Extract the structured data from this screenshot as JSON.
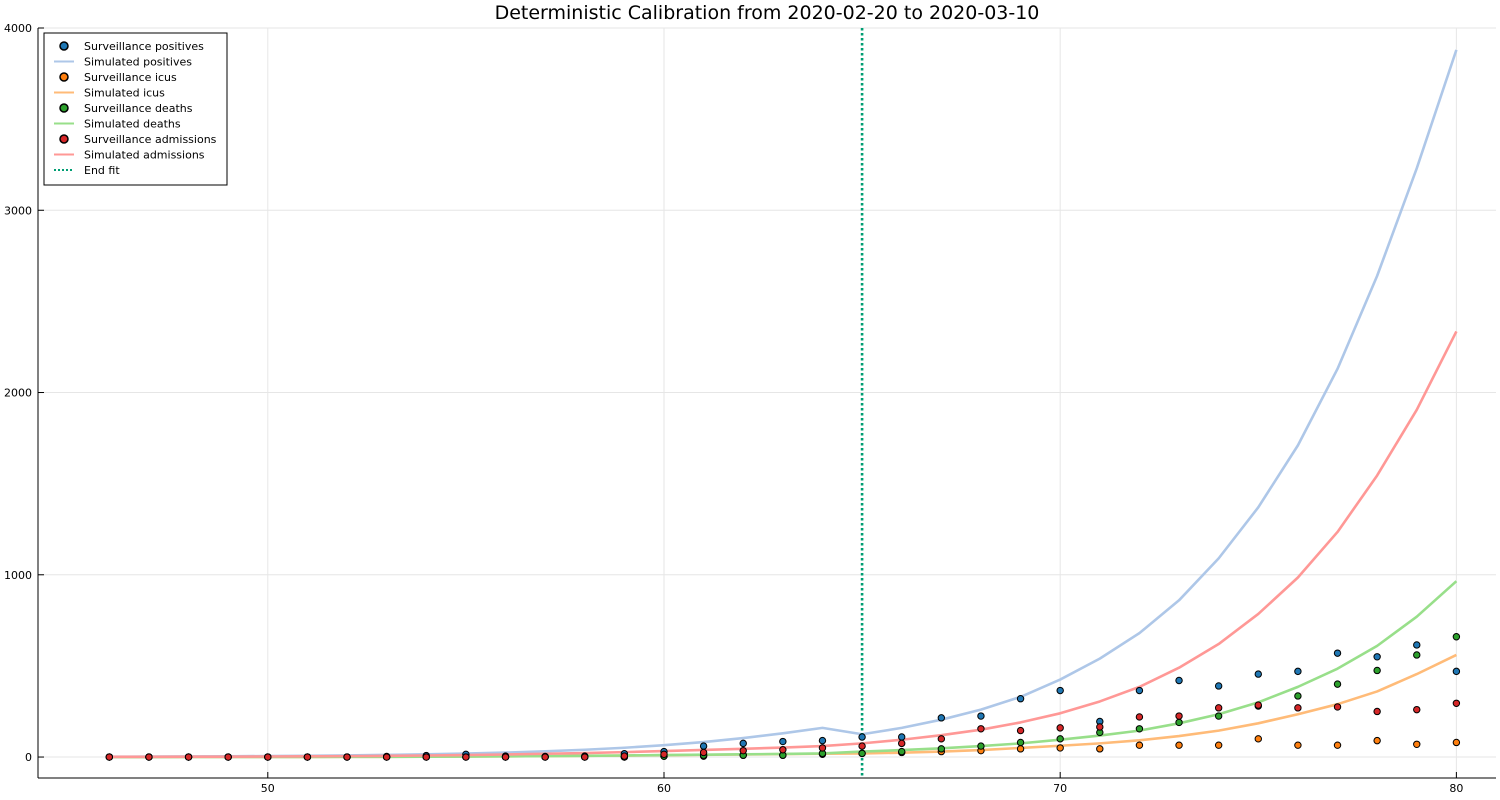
{
  "chart_data": {
    "type": "line",
    "title": "Deterministic Calibration from 2020-02-20 to 2020-03-10",
    "xlabel": "",
    "ylabel": "",
    "xlim": [
      44.2,
      81.0
    ],
    "ylim": [
      -115,
      4000
    ],
    "x_ticks": [
      50,
      60,
      70,
      80
    ],
    "y_ticks": [
      0,
      1000,
      2000,
      3000,
      4000
    ],
    "grid": true,
    "legend_position": "top-left",
    "end_fit_x": 65,
    "x": [
      46,
      47,
      48,
      49,
      50,
      51,
      52,
      53,
      54,
      55,
      56,
      57,
      58,
      59,
      60,
      61,
      62,
      63,
      64,
      65,
      66,
      67,
      68,
      69,
      70,
      71,
      72,
      73,
      74,
      75,
      76,
      77,
      78,
      79,
      80
    ],
    "colors": {
      "positives_marker": "#1f77b4",
      "positives_line": "#aec7e8",
      "icus_marker": "#ff7f0e",
      "icus_line": "#ffbb78",
      "deaths_marker": "#2ca02c",
      "deaths_line": "#98df8a",
      "admissions_marker": "#d62728",
      "admissions_line": "#ff9896",
      "endfit": "#009e73"
    },
    "series": [
      {
        "name": "Surveillance positives",
        "kind": "scatter",
        "color": "#1f77b4",
        "values": [
          0,
          0,
          0,
          0,
          0,
          0,
          0,
          3,
          8,
          15,
          5,
          3,
          5,
          18,
          30,
          60,
          75,
          85,
          90,
          110,
          110,
          215,
          225,
          320,
          365,
          195,
          365,
          420,
          390,
          455,
          470,
          570,
          550,
          615,
          470
        ]
      },
      {
        "name": "Simulated positives",
        "kind": "line",
        "color": "#aec7e8",
        "values": [
          2,
          2.6,
          3.3,
          4.3,
          5.5,
          7.1,
          9.1,
          11.7,
          15,
          19,
          24.5,
          31.5,
          40,
          51,
          65,
          82,
          104,
          130,
          160,
          125,
          160,
          205,
          260,
          330,
          425,
          540,
          680,
          860,
          1090,
          1370,
          1710,
          2130,
          2640,
          3230,
          3880
        ]
      },
      {
        "name": "Surveillance icus",
        "kind": "scatter",
        "color": "#ff7f0e",
        "values": [
          0,
          0,
          0,
          0,
          0,
          0,
          0,
          0,
          0,
          0,
          0,
          0,
          0,
          0,
          5,
          5,
          10,
          10,
          15,
          20,
          25,
          30,
          35,
          45,
          50,
          45,
          65,
          65,
          65,
          100,
          65,
          65,
          90,
          70,
          80
        ]
      },
      {
        "name": "Simulated icus",
        "kind": "line",
        "color": "#ffbb78",
        "values": [
          0,
          0.1,
          0.2,
          0.3,
          0.5,
          0.7,
          1,
          1.4,
          2,
          3,
          4,
          5,
          6.5,
          8,
          10,
          12,
          14,
          16,
          18,
          20,
          24,
          30,
          38,
          50,
          62,
          75,
          92,
          115,
          145,
          185,
          235,
          290,
          360,
          455,
          560
        ]
      },
      {
        "name": "Surveillance deaths",
        "kind": "scatter",
        "color": "#2ca02c",
        "values": [
          0,
          0,
          0,
          0,
          0,
          0,
          0,
          0,
          0,
          0,
          0,
          0,
          0,
          0,
          5,
          10,
          10,
          10,
          20,
          20,
          30,
          45,
          60,
          80,
          100,
          135,
          155,
          190,
          225,
          280,
          335,
          400,
          475,
          560,
          660
        ]
      },
      {
        "name": "Simulated deaths",
        "kind": "line",
        "color": "#98df8a",
        "values": [
          0,
          0.1,
          0.2,
          0.3,
          0.5,
          0.7,
          1,
          1.4,
          2,
          2.8,
          3.8,
          5,
          6.5,
          8.5,
          11,
          13,
          15,
          17,
          20,
          30,
          38,
          48,
          60,
          75,
          95,
          118,
          145,
          185,
          235,
          300,
          385,
          485,
          610,
          770,
          965
        ]
      },
      {
        "name": "Surveillance admissions",
        "kind": "scatter",
        "color": "#d62728",
        "values": [
          0,
          0,
          0,
          0,
          0,
          0,
          0,
          0,
          0,
          0,
          0,
          0,
          0,
          5,
          15,
          25,
          35,
          40,
          50,
          60,
          75,
          100,
          155,
          145,
          160,
          165,
          220,
          225,
          270,
          285,
          270,
          275,
          250,
          260,
          295
        ]
      },
      {
        "name": "Simulated admissions",
        "kind": "line",
        "color": "#ff9896",
        "values": [
          1,
          1.3,
          1.7,
          2.2,
          2.9,
          3.8,
          5,
          6.5,
          8.5,
          11,
          14,
          18,
          22,
          27,
          33,
          39,
          45,
          52,
          60,
          75,
          95,
          120,
          150,
          190,
          240,
          305,
          385,
          490,
          620,
          785,
          985,
          1235,
          1545,
          1905,
          2335
        ]
      }
    ],
    "legend": [
      {
        "label": "Surveillance positives",
        "kind": "scatter",
        "color": "#1f77b4"
      },
      {
        "label": "Simulated positives",
        "kind": "line",
        "color": "#aec7e8"
      },
      {
        "label": "Surveillance icus",
        "kind": "scatter",
        "color": "#ff7f0e"
      },
      {
        "label": "Simulated icus",
        "kind": "line",
        "color": "#ffbb78"
      },
      {
        "label": "Surveillance deaths",
        "kind": "scatter",
        "color": "#2ca02c"
      },
      {
        "label": "Simulated deaths",
        "kind": "line",
        "color": "#98df8a"
      },
      {
        "label": "Surveillance admissions",
        "kind": "scatter",
        "color": "#d62728"
      },
      {
        "label": "Simulated admissions",
        "kind": "line",
        "color": "#ff9896"
      },
      {
        "label": "End fit",
        "kind": "dotted",
        "color": "#009e73"
      }
    ]
  }
}
